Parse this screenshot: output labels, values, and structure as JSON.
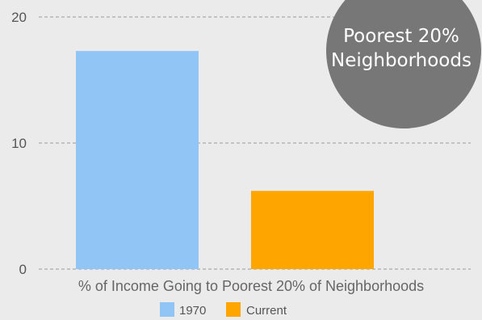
{
  "chart_data": {
    "type": "bar",
    "categories": [
      "% of Income Going to Poorest 20% of Neighborhoods"
    ],
    "series": [
      {
        "name": "1970",
        "values": [
          17.3
        ],
        "color": "#91c5f5"
      },
      {
        "name": "Current",
        "values": [
          6.2
        ],
        "color": "#ffa500"
      }
    ],
    "xlabel": "% of Income Going to Poorest 20% of Neighborhoods",
    "ylim": [
      0,
      20
    ],
    "yticks": [
      0,
      10,
      20
    ],
    "grid": true,
    "legend_position": "bottom"
  },
  "badge": {
    "line1": "Poorest 20%",
    "line2": "Neighborhoods",
    "color": "#777777"
  }
}
